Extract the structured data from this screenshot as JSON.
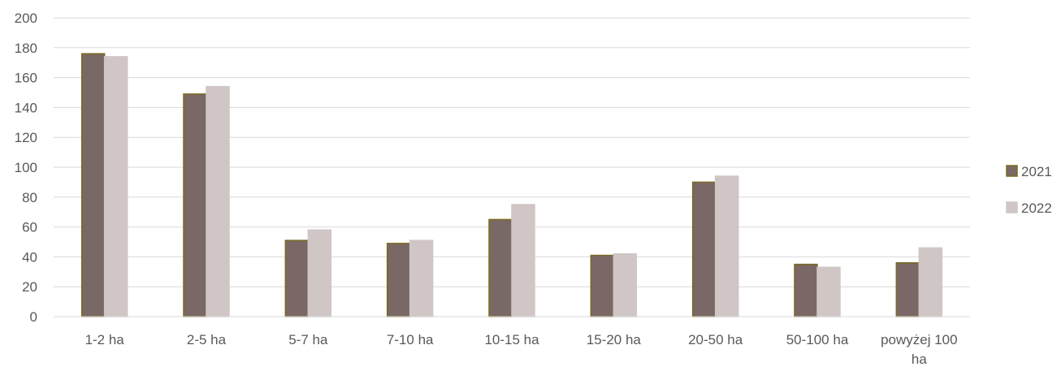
{
  "chart_data": {
    "type": "bar",
    "categories": [
      "1-2 ha",
      "2-5 ha",
      "5-7 ha",
      "7-10 ha",
      "10-15 ha",
      "15-20 ha",
      "20-50 ha",
      "50-100 ha",
      "powyżej 100 ha"
    ],
    "category_lines": [
      [
        "1-2 ha"
      ],
      [
        "2-5 ha"
      ],
      [
        "5-7 ha"
      ],
      [
        "7-10 ha"
      ],
      [
        "10-15 ha"
      ],
      [
        "15-20 ha"
      ],
      [
        "20-50 ha"
      ],
      [
        "50-100 ha"
      ],
      [
        "powyżej 100",
        "ha"
      ]
    ],
    "series": [
      {
        "name": "2021",
        "values": [
          176,
          149,
          51,
          49,
          65,
          41,
          90,
          35,
          36
        ],
        "color": "#7a6866",
        "stroke": "#7a6a1e"
      },
      {
        "name": "2022",
        "values": [
          174,
          154,
          58,
          51,
          75,
          42,
          94,
          33,
          46
        ],
        "color": "#d0c6c6",
        "stroke": "#d0c6c6"
      }
    ],
    "ylim": [
      0,
      200
    ],
    "yticks": [
      0,
      20,
      40,
      60,
      80,
      100,
      120,
      140,
      160,
      180,
      200
    ],
    "grid": true,
    "grid_color": "#d9d9d9",
    "legend_position": "right",
    "title": "",
    "xlabel": "",
    "ylabel": ""
  }
}
